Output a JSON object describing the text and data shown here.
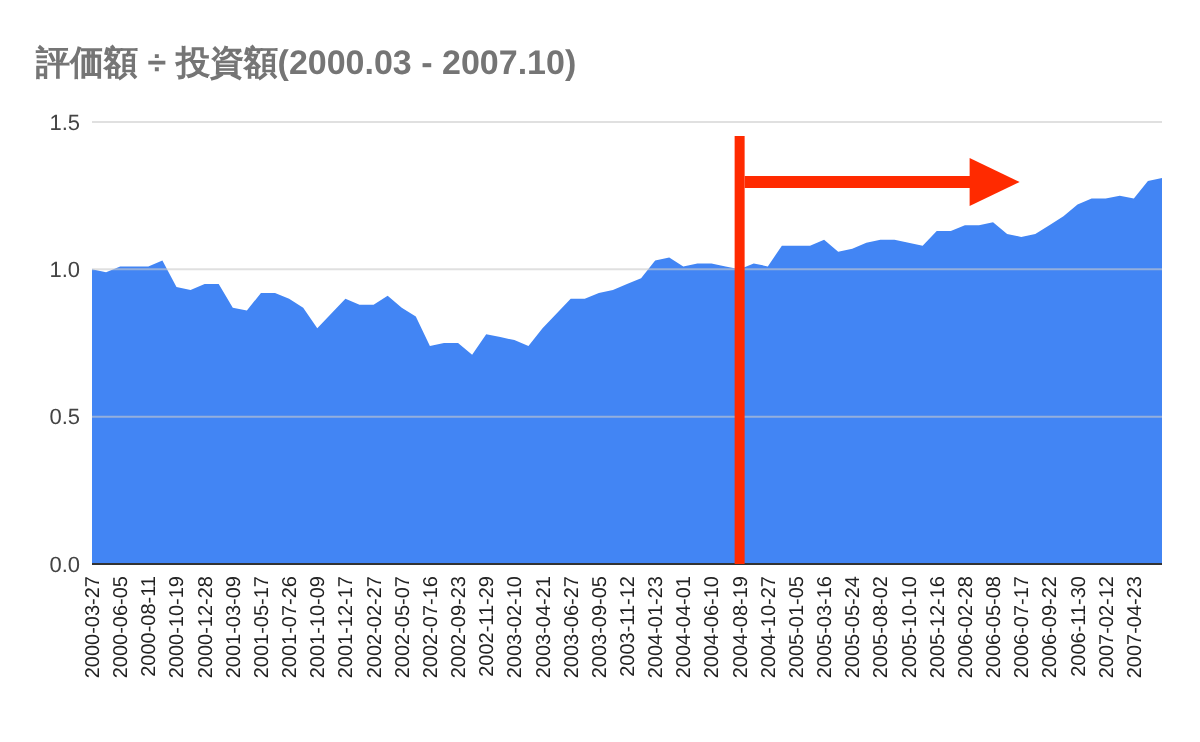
{
  "chart_data": {
    "type": "area",
    "title": "評価額 ÷ 投資額(2000.03 - 2007.10)",
    "categories": [
      "2000-03-27",
      null,
      "2000-06-05",
      null,
      "2000-08-11",
      null,
      "2000-10-19",
      null,
      "2000-12-28",
      null,
      "2001-03-09",
      null,
      "2001-05-17",
      null,
      "2001-07-26",
      null,
      "2001-10-09",
      null,
      "2001-12-17",
      null,
      "2002-02-27",
      null,
      "2002-05-07",
      null,
      "2002-07-16",
      null,
      "2002-09-23",
      null,
      "2002-11-29",
      null,
      "2003-02-10",
      null,
      "2003-04-21",
      null,
      "2003-06-27",
      null,
      "2003-09-05",
      null,
      "2003-11-12",
      null,
      "2004-01-23",
      null,
      "2004-04-01",
      null,
      "2004-06-10",
      null,
      "2004-08-19",
      null,
      "2004-10-27",
      null,
      "2005-01-05",
      null,
      "2005-03-16",
      null,
      "2005-05-24",
      null,
      "2005-08-02",
      null,
      "2005-10-10",
      null,
      "2005-12-16",
      null,
      "2006-02-28",
      null,
      "2006-05-08",
      null,
      "2006-07-17",
      null,
      "2006-09-22",
      null,
      "2006-11-30",
      null,
      "2007-02-12",
      null,
      "2007-04-23",
      null,
      null
    ],
    "values": [
      1.0,
      0.99,
      1.01,
      1.01,
      1.01,
      1.03,
      0.94,
      0.93,
      0.95,
      0.95,
      0.87,
      0.86,
      0.92,
      0.92,
      0.9,
      0.87,
      0.8,
      0.85,
      0.9,
      0.88,
      0.88,
      0.91,
      0.87,
      0.84,
      0.74,
      0.75,
      0.75,
      0.71,
      0.78,
      0.77,
      0.76,
      0.74,
      0.8,
      0.85,
      0.9,
      0.9,
      0.92,
      0.93,
      0.95,
      0.97,
      1.03,
      1.04,
      1.01,
      1.02,
      1.02,
      1.01,
      1.0,
      1.02,
      1.01,
      1.08,
      1.08,
      1.08,
      1.1,
      1.06,
      1.07,
      1.09,
      1.1,
      1.1,
      1.09,
      1.08,
      1.13,
      1.13,
      1.15,
      1.15,
      1.16,
      1.12,
      1.11,
      1.12,
      1.15,
      1.18,
      1.22,
      1.24,
      1.24,
      1.25,
      1.24,
      1.3,
      1.31
    ],
    "color": "#4285f4",
    "ylim": [
      0,
      1.5
    ],
    "yticks": [
      {
        "value": 0,
        "label": "0.0"
      },
      {
        "value": 0.5,
        "label": "0.5"
      },
      {
        "value": 1,
        "label": "1.0"
      },
      {
        "value": 1.5,
        "label": "1.5"
      }
    ],
    "grid": "y",
    "ref_lines": [
      {
        "axis": "x",
        "value": "2004-08-19",
        "color": "#ff2a00"
      }
    ]
  }
}
